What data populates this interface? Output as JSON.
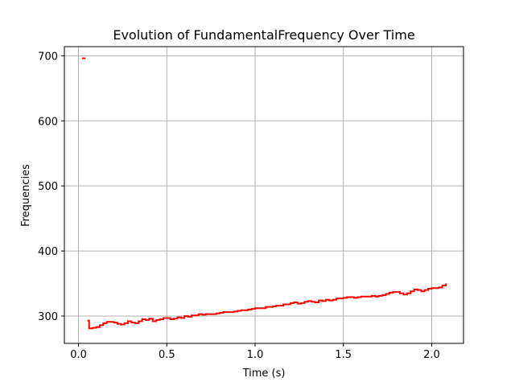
{
  "chart_data": {
    "type": "line",
    "title": "Evolution of FundamentalFrequency Over Time",
    "xlabel": "Time (s)",
    "ylabel": "Frequencies",
    "xlim": [
      -0.08,
      2.18
    ],
    "ylim": [
      258,
      714
    ],
    "xticks": [
      0.0,
      0.5,
      1.0,
      1.5,
      2.0
    ],
    "xtick_labels": [
      "0.0",
      "0.5",
      "1.0",
      "1.5",
      "2.0"
    ],
    "yticks": [
      300,
      400,
      500,
      600,
      700
    ],
    "ytick_labels": [
      "300",
      "400",
      "500",
      "600",
      "700"
    ],
    "grid": true,
    "legend": "none",
    "line_color": "#ff0000",
    "grid_color": "#b0b0b0",
    "series": [
      {
        "segments": [
          {
            "x": [
              0.02,
              0.04
            ],
            "y": [
              696,
              696
            ]
          },
          {
            "x": [
              0.05,
              0.06,
              0.08,
              0.1,
              0.12,
              0.14,
              0.16,
              0.18,
              0.2,
              0.22,
              0.24,
              0.26,
              0.28,
              0.3,
              0.32,
              0.34,
              0.36,
              0.38,
              0.4,
              0.42,
              0.44,
              0.46,
              0.48,
              0.5,
              0.52,
              0.54,
              0.56,
              0.58,
              0.6,
              0.62,
              0.64,
              0.66,
              0.68,
              0.7,
              0.72,
              0.74,
              0.76,
              0.78,
              0.8,
              0.82,
              0.84,
              0.86,
              0.88,
              0.9,
              0.92,
              0.94,
              0.96,
              0.98,
              1.0,
              1.02,
              1.04,
              1.06,
              1.08,
              1.1,
              1.12,
              1.14,
              1.16,
              1.18,
              1.2,
              1.22,
              1.24,
              1.26,
              1.28,
              1.3,
              1.32,
              1.34,
              1.36,
              1.38,
              1.4,
              1.42,
              1.44,
              1.46,
              1.48,
              1.5,
              1.52,
              1.54,
              1.56,
              1.58,
              1.6,
              1.62,
              1.64,
              1.66,
              1.68,
              1.7,
              1.72,
              1.74,
              1.76,
              1.78,
              1.8,
              1.82,
              1.84,
              1.86,
              1.88,
              1.9,
              1.92,
              1.94,
              1.96,
              1.98,
              2.0,
              2.02,
              2.04,
              2.06,
              2.08
            ],
            "y": [
              293,
              281,
              282,
              283,
              286,
              289,
              291,
              291,
              290,
              288,
              287,
              289,
              292,
              290,
              289,
              292,
              295,
              294,
              296,
              292,
              294,
              295,
              297,
              297,
              295,
              296,
              298,
              297,
              300,
              299,
              301,
              301,
              303,
              302,
              303,
              303,
              303,
              304,
              305,
              306,
              306,
              306,
              307,
              308,
              309,
              309,
              310,
              311,
              312,
              312,
              312,
              314,
              314,
              315,
              316,
              316,
              318,
              318,
              320,
              321,
              319,
              320,
              322,
              323,
              322,
              321,
              324,
              323,
              325,
              324,
              325,
              327,
              327,
              328,
              329,
              329,
              328,
              329,
              330,
              330,
              330,
              331,
              330,
              331,
              332,
              334,
              336,
              337,
              337,
              335,
              333,
              335,
              338,
              341,
              340,
              338,
              340,
              342,
              343,
              343,
              344,
              347,
              350
            ]
          }
        ]
      }
    ]
  }
}
